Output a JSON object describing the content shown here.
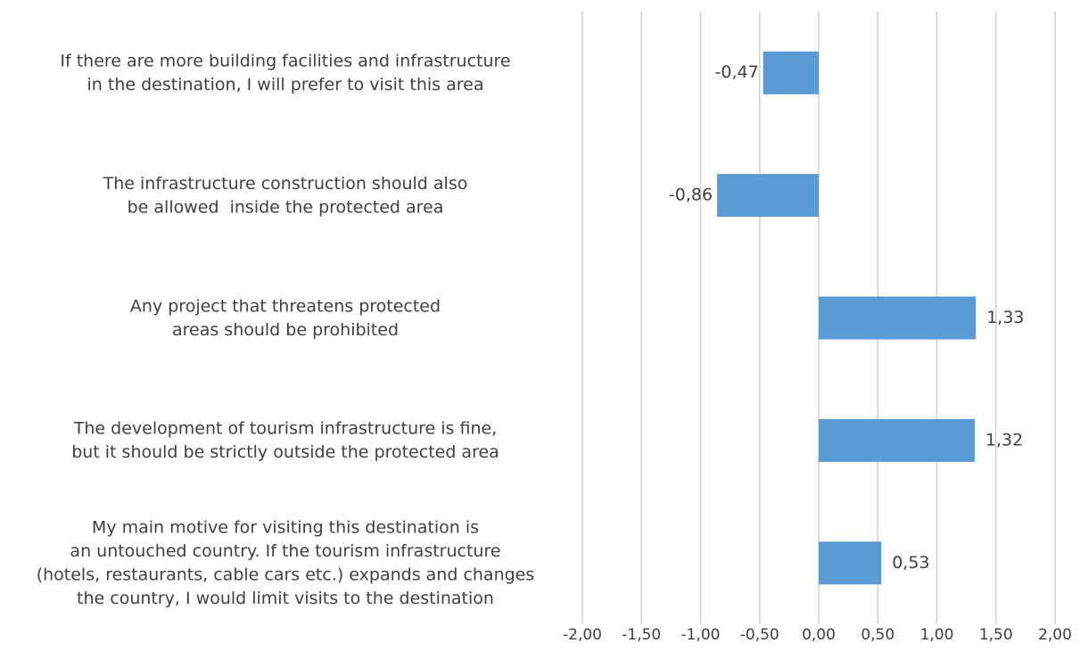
{
  "chart_data": {
    "type": "barh",
    "categories": [
      "If there are more building facilities and infrastructure\nin the destination, I will prefer to visit this area",
      "The infrastructure construction should also\nbe allowed  inside the protected area",
      "Any project that threatens protected\nareas should be prohibited",
      "The development of tourism infrastructure is fine,\nbut it should be strictly outside the protected area",
      "My main motive for visiting this destination is\nan untouched country. If the tourism infrastructure\n(hotels, restaurants, cable cars etc.) expands and changes\nthe country, I would limit visits to the destination"
    ],
    "values": [
      -0.47,
      -0.86,
      1.33,
      1.32,
      0.53
    ],
    "value_labels": [
      "-0,47",
      "-0,86",
      "1,33",
      "1,32",
      "0,53"
    ],
    "color": "#5b9bd5",
    "xlim": [
      -2,
      2
    ],
    "xticks": [
      {
        "value": -2,
        "label": "-2,00"
      },
      {
        "value": -1.5,
        "label": "-1,50"
      },
      {
        "value": -1,
        "label": "-1,00"
      },
      {
        "value": -0.5,
        "label": "-0,50"
      },
      {
        "value": 0,
        "label": "0,00"
      },
      {
        "value": 0.5,
        "label": "0,50"
      },
      {
        "value": 1,
        "label": "1,00"
      },
      {
        "value": 1.5,
        "label": "1,50"
      },
      {
        "value": 2,
        "label": "2,00"
      }
    ],
    "grid": true
  }
}
